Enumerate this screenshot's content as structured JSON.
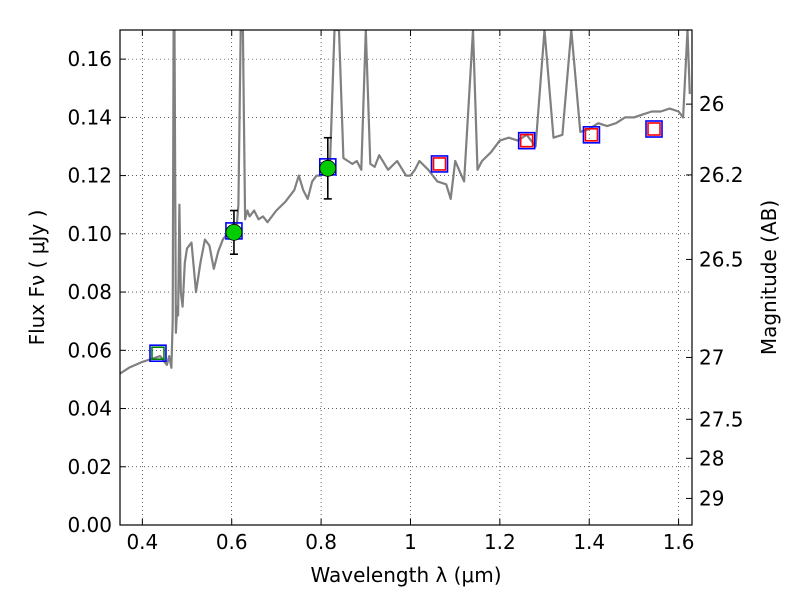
{
  "chart_data": {
    "type": "scatter",
    "title": "",
    "xlabel": "Wavelength  λ (μm)",
    "ylabel": "Flux  Fν  ( μJy )",
    "y2label": "Magnitude (AB)",
    "xlim": [
      0.35,
      1.63
    ],
    "ylim": [
      0.0,
      0.17
    ],
    "grid": true,
    "x_ticks": [
      0.4,
      0.6,
      0.8,
      1.0,
      1.2,
      1.4,
      1.6
    ],
    "x_tick_labels": [
      "0.4",
      "0.6",
      "0.8",
      "1",
      "1.2",
      "1.4",
      "1.6"
    ],
    "y_ticks": [
      0.0,
      0.02,
      0.04,
      0.06,
      0.08,
      0.1,
      0.12,
      0.14,
      0.16
    ],
    "y_tick_labels": [
      "0.00",
      "0.02",
      "0.04",
      "0.06",
      "0.08",
      "0.10",
      "0.12",
      "0.14",
      "0.16"
    ],
    "y2_ticks": [
      26,
      26.2,
      26.5,
      27,
      27.5,
      28,
      29
    ],
    "y2_tick_labels": [
      "26",
      "26.2",
      "26.5",
      "27",
      "27.5",
      "28",
      "29"
    ],
    "series": [
      {
        "kind": "spectrum-line",
        "color": "#808080",
        "x": [
          0.35,
          0.37,
          0.4,
          0.42,
          0.44,
          0.455,
          0.46,
          0.465,
          0.468,
          0.47,
          0.472,
          0.475,
          0.478,
          0.48,
          0.483,
          0.486,
          0.49,
          0.495,
          0.5,
          0.51,
          0.52,
          0.53,
          0.54,
          0.55,
          0.56,
          0.57,
          0.58,
          0.59,
          0.6,
          0.605,
          0.61,
          0.615,
          0.62,
          0.625,
          0.63,
          0.635,
          0.64,
          0.65,
          0.66,
          0.67,
          0.68,
          0.7,
          0.72,
          0.74,
          0.75,
          0.76,
          0.77,
          0.78,
          0.79,
          0.8,
          0.81,
          0.82,
          0.83,
          0.84,
          0.85,
          0.86,
          0.87,
          0.88,
          0.89,
          0.9,
          0.91,
          0.92,
          0.93,
          0.95,
          0.97,
          0.99,
          1.0,
          1.01,
          1.02,
          1.04,
          1.06,
          1.08,
          1.09,
          1.1,
          1.12,
          1.14,
          1.15,
          1.16,
          1.18,
          1.2,
          1.22,
          1.24,
          1.26,
          1.28,
          1.3,
          1.32,
          1.34,
          1.36,
          1.38,
          1.4,
          1.42,
          1.44,
          1.46,
          1.48,
          1.5,
          1.52,
          1.54,
          1.56,
          1.58,
          1.6,
          1.61,
          1.62,
          1.625
        ],
        "y": [
          0.052,
          0.054,
          0.056,
          0.057,
          0.058,
          0.055,
          0.058,
          0.054,
          0.07,
          0.17,
          0.17,
          0.066,
          0.075,
          0.072,
          0.11,
          0.08,
          0.075,
          0.09,
          0.095,
          0.097,
          0.08,
          0.09,
          0.098,
          0.096,
          0.088,
          0.094,
          0.098,
          0.1,
          0.102,
          0.104,
          0.1,
          0.11,
          0.17,
          0.17,
          0.105,
          0.108,
          0.106,
          0.108,
          0.105,
          0.106,
          0.104,
          0.108,
          0.111,
          0.115,
          0.12,
          0.115,
          0.112,
          0.118,
          0.12,
          0.12,
          0.121,
          0.124,
          0.17,
          0.17,
          0.126,
          0.125,
          0.124,
          0.125,
          0.122,
          0.17,
          0.124,
          0.123,
          0.127,
          0.122,
          0.125,
          0.12,
          0.12,
          0.122,
          0.125,
          0.122,
          0.118,
          0.117,
          0.112,
          0.125,
          0.118,
          0.17,
          0.122,
          0.125,
          0.128,
          0.132,
          0.133,
          0.132,
          0.134,
          0.13,
          0.17,
          0.133,
          0.134,
          0.17,
          0.135,
          0.136,
          0.138,
          0.137,
          0.138,
          0.14,
          0.14,
          0.141,
          0.142,
          0.142,
          0.143,
          0.142,
          0.14,
          0.17,
          0.148
        ]
      },
      {
        "kind": "model-box-blue",
        "color": "#0000ff",
        "x": [
          0.435,
          0.605,
          0.815,
          1.065,
          1.26,
          1.405,
          1.545
        ],
        "y": [
          0.059,
          0.101,
          0.123,
          0.124,
          0.132,
          0.134,
          0.136
        ]
      },
      {
        "kind": "model-box-red",
        "color": "#ff0000",
        "x": [
          1.065,
          1.26,
          1.405,
          1.545
        ],
        "y": [
          0.124,
          0.132,
          0.134,
          0.136
        ]
      },
      {
        "kind": "model-box-green",
        "color": "#008000",
        "x": [
          0.435
        ],
        "y": [
          0.059
        ]
      },
      {
        "kind": "observed",
        "color": "#00cc00",
        "x": [
          0.605,
          0.815
        ],
        "y": [
          0.1005,
          0.1225
        ],
        "err": [
          0.0075,
          0.0105
        ]
      }
    ]
  }
}
